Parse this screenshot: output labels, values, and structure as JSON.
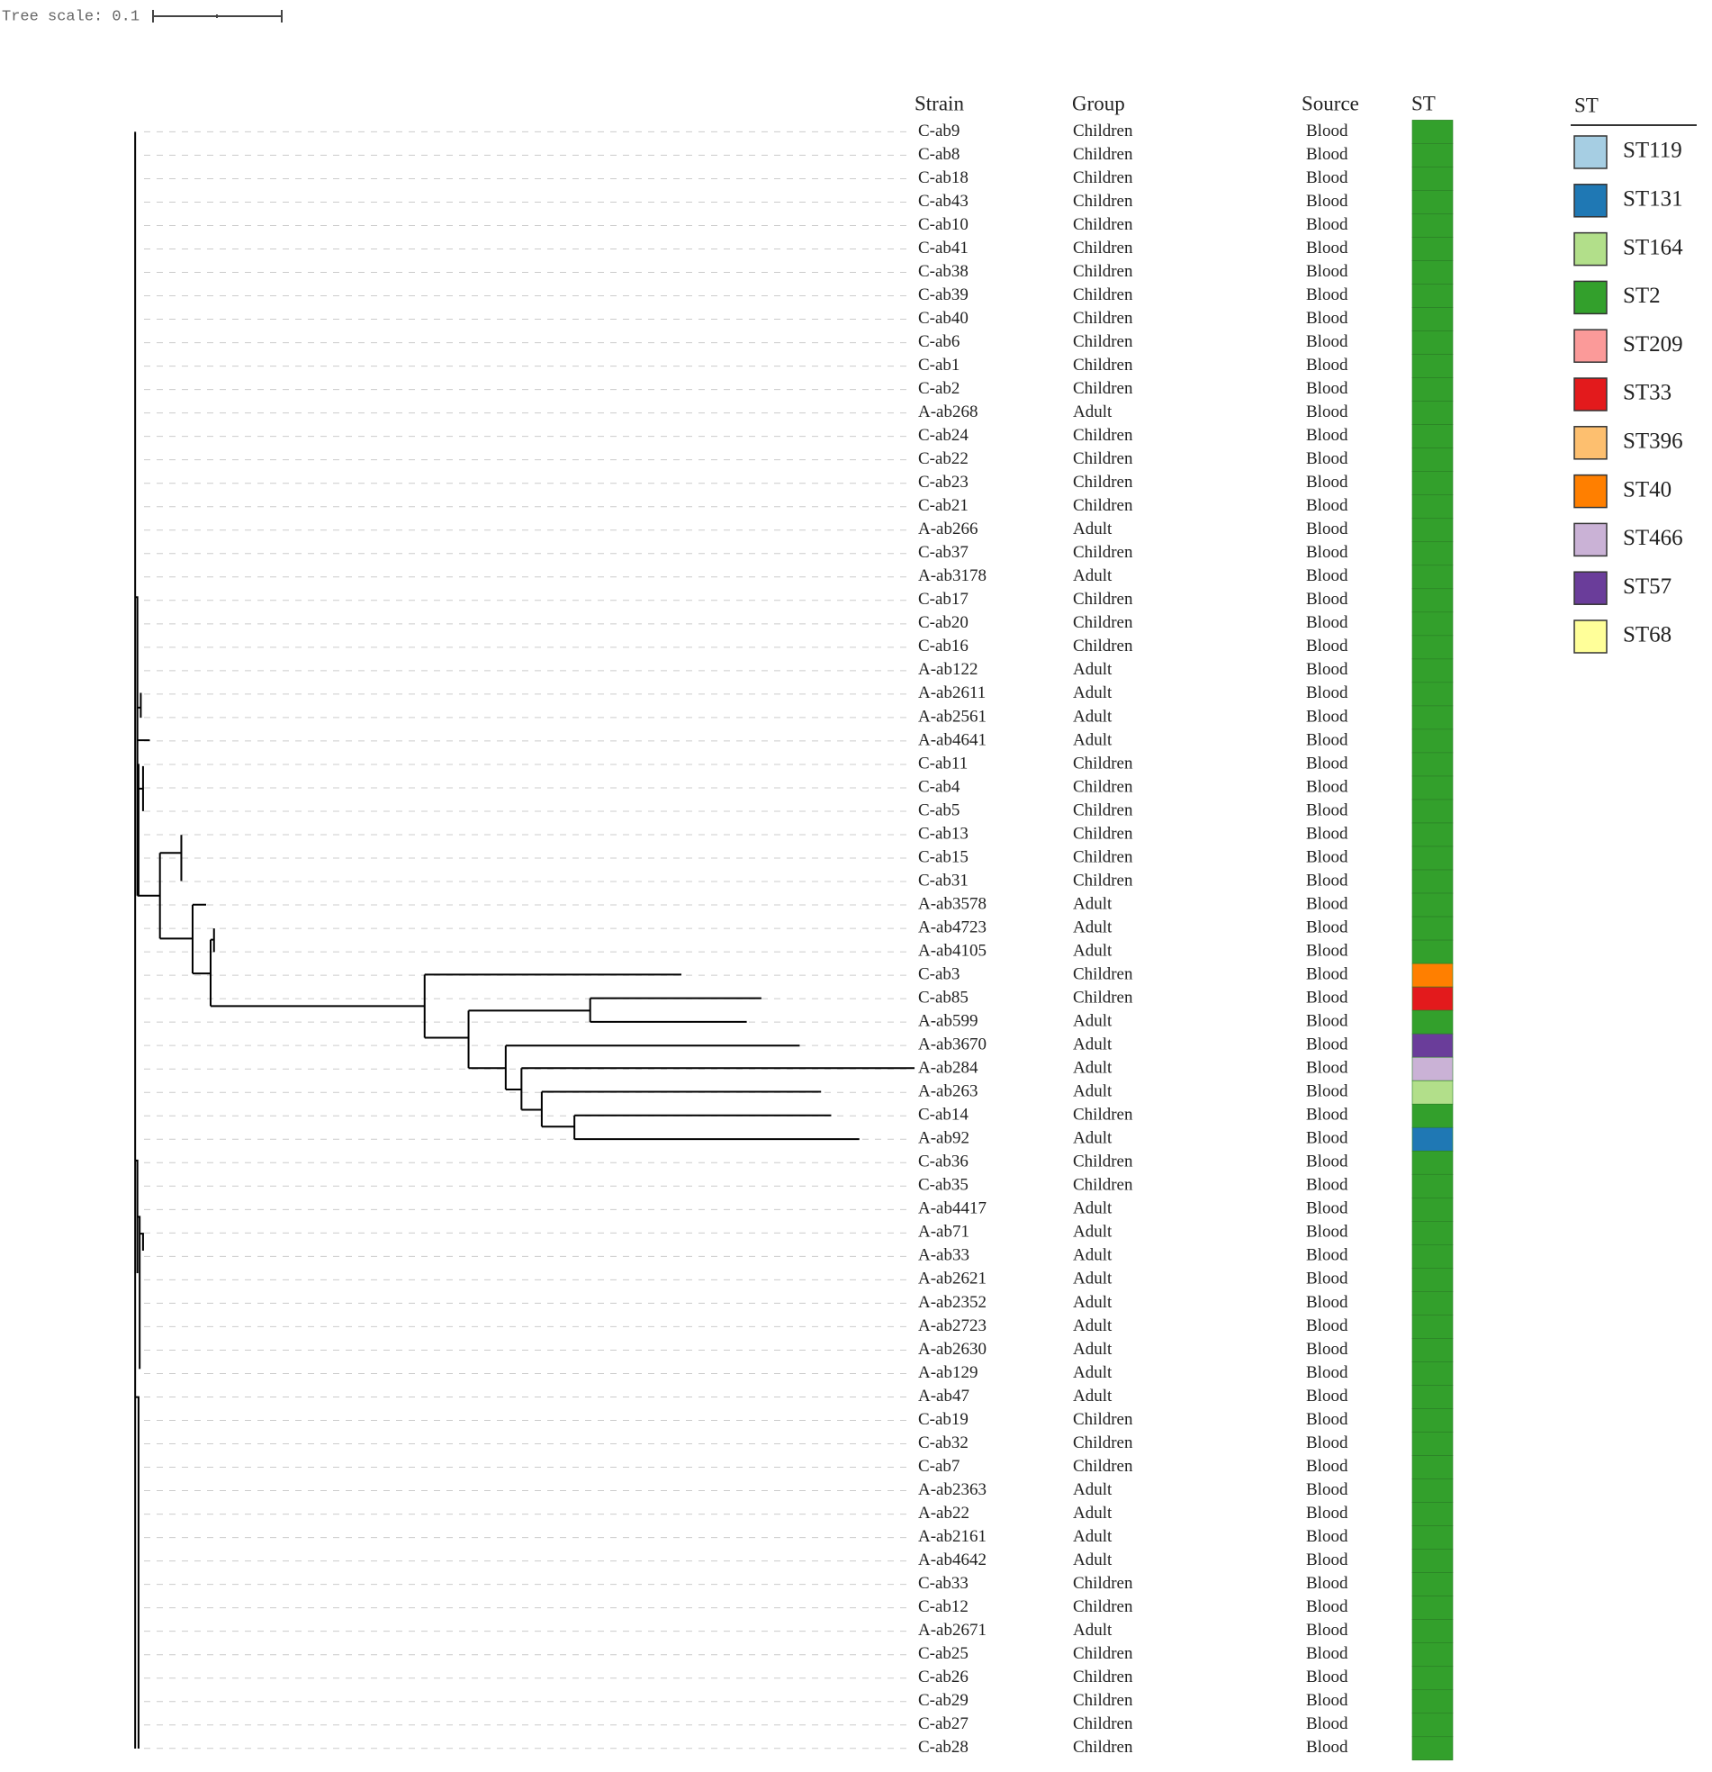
{
  "tree_scale": "Tree scale: 0.1",
  "columns": [
    "Strain",
    "Group",
    "Source",
    "ST"
  ],
  "legend": {
    "title": "ST",
    "items": [
      {
        "label": "ST119",
        "color": "#a6cee3"
      },
      {
        "label": "ST131",
        "color": "#1f78b4"
      },
      {
        "label": "ST164",
        "color": "#b2df8a"
      },
      {
        "label": "ST2",
        "color": "#33a02c"
      },
      {
        "label": "ST209",
        "color": "#fb9a99"
      },
      {
        "label": "ST33",
        "color": "#e31a1c"
      },
      {
        "label": "ST396",
        "color": "#fdbf6f"
      },
      {
        "label": "ST40",
        "color": "#ff7f00"
      },
      {
        "label": "ST466",
        "color": "#cab2d6"
      },
      {
        "label": "ST57",
        "color": "#6a3d9a"
      },
      {
        "label": "ST68",
        "color": "#ffff99"
      }
    ]
  },
  "table": {
    "rows": [
      [
        "C-ab9",
        "Children",
        "Blood",
        "ST2"
      ],
      [
        "C-ab8",
        "Children",
        "Blood",
        "ST2"
      ],
      [
        "C-ab18",
        "Children",
        "Blood",
        "ST2"
      ],
      [
        "C-ab43",
        "Children",
        "Blood",
        "ST2"
      ],
      [
        "C-ab10",
        "Children",
        "Blood",
        "ST2"
      ],
      [
        "C-ab41",
        "Children",
        "Blood",
        "ST2"
      ],
      [
        "C-ab38",
        "Children",
        "Blood",
        "ST2"
      ],
      [
        "C-ab39",
        "Children",
        "Blood",
        "ST2"
      ],
      [
        "C-ab40",
        "Children",
        "Blood",
        "ST2"
      ],
      [
        "C-ab6",
        "Children",
        "Blood",
        "ST2"
      ],
      [
        "C-ab1",
        "Children",
        "Blood",
        "ST2"
      ],
      [
        "C-ab2",
        "Children",
        "Blood",
        "ST2"
      ],
      [
        "A-ab268",
        "Adult",
        "Blood",
        "ST2"
      ],
      [
        "C-ab24",
        "Children",
        "Blood",
        "ST2"
      ],
      [
        "C-ab22",
        "Children",
        "Blood",
        "ST2"
      ],
      [
        "C-ab23",
        "Children",
        "Blood",
        "ST2"
      ],
      [
        "C-ab21",
        "Children",
        "Blood",
        "ST2"
      ],
      [
        "A-ab266",
        "Adult",
        "Blood",
        "ST2"
      ],
      [
        "C-ab37",
        "Children",
        "Blood",
        "ST2"
      ],
      [
        "A-ab3178",
        "Adult",
        "Blood",
        "ST2"
      ],
      [
        "C-ab17",
        "Children",
        "Blood",
        "ST2"
      ],
      [
        "C-ab20",
        "Children",
        "Blood",
        "ST2"
      ],
      [
        "C-ab16",
        "Children",
        "Blood",
        "ST2"
      ],
      [
        "A-ab122",
        "Adult",
        "Blood",
        "ST2"
      ],
      [
        "A-ab2611",
        "Adult",
        "Blood",
        "ST2"
      ],
      [
        "A-ab2561",
        "Adult",
        "Blood",
        "ST2"
      ],
      [
        "A-ab4641",
        "Adult",
        "Blood",
        "ST2"
      ],
      [
        "C-ab11",
        "Children",
        "Blood",
        "ST2"
      ],
      [
        "C-ab4",
        "Children",
        "Blood",
        "ST2"
      ],
      [
        "C-ab5",
        "Children",
        "Blood",
        "ST2"
      ],
      [
        "C-ab13",
        "Children",
        "Blood",
        "ST2"
      ],
      [
        "C-ab15",
        "Children",
        "Blood",
        "ST2"
      ],
      [
        "C-ab31",
        "Children",
        "Blood",
        "ST2"
      ],
      [
        "A-ab3578",
        "Adult",
        "Blood",
        "ST2"
      ],
      [
        "A-ab4723",
        "Adult",
        "Blood",
        "ST2"
      ],
      [
        "A-ab4105",
        "Adult",
        "Blood",
        "ST2"
      ],
      [
        "C-ab3",
        "Children",
        "Blood",
        "ST40"
      ],
      [
        "C-ab85",
        "Children",
        "Blood",
        "ST33"
      ],
      [
        "A-ab599",
        "Adult",
        "Blood",
        "ST2"
      ],
      [
        "A-ab3670",
        "Adult",
        "Blood",
        "ST57"
      ],
      [
        "A-ab284",
        "Adult",
        "Blood",
        "ST466"
      ],
      [
        "A-ab263",
        "Adult",
        "Blood",
        "ST164"
      ],
      [
        "C-ab14",
        "Children",
        "Blood",
        "ST2"
      ],
      [
        "A-ab92",
        "Adult",
        "Blood",
        "ST131"
      ],
      [
        "C-ab36",
        "Children",
        "Blood",
        "ST2"
      ],
      [
        "C-ab35",
        "Children",
        "Blood",
        "ST2"
      ],
      [
        "A-ab4417",
        "Adult",
        "Blood",
        "ST2"
      ],
      [
        "A-ab71",
        "Adult",
        "Blood",
        "ST2"
      ],
      [
        "A-ab33",
        "Adult",
        "Blood",
        "ST2"
      ],
      [
        "A-ab2621",
        "Adult",
        "Blood",
        "ST2"
      ],
      [
        "A-ab2352",
        "Adult",
        "Blood",
        "ST2"
      ],
      [
        "A-ab2723",
        "Adult",
        "Blood",
        "ST2"
      ],
      [
        "A-ab2630",
        "Adult",
        "Blood",
        "ST2"
      ],
      [
        "A-ab129",
        "Adult",
        "Blood",
        "ST2"
      ],
      [
        "A-ab47",
        "Adult",
        "Blood",
        "ST2"
      ],
      [
        "C-ab19",
        "Children",
        "Blood",
        "ST2"
      ],
      [
        "C-ab32",
        "Children",
        "Blood",
        "ST2"
      ],
      [
        "C-ab7",
        "Children",
        "Blood",
        "ST2"
      ],
      [
        "A-ab2363",
        "Adult",
        "Blood",
        "ST2"
      ],
      [
        "A-ab22",
        "Adult",
        "Blood",
        "ST2"
      ],
      [
        "A-ab2161",
        "Adult",
        "Blood",
        "ST2"
      ],
      [
        "A-ab4642",
        "Adult",
        "Blood",
        "ST2"
      ],
      [
        "C-ab33",
        "Children",
        "Blood",
        "ST2"
      ],
      [
        "C-ab12",
        "Children",
        "Blood",
        "ST2"
      ],
      [
        "A-ab2671",
        "Adult",
        "Blood",
        "ST2"
      ],
      [
        "C-ab25",
        "Children",
        "Blood",
        "ST2"
      ],
      [
        "C-ab26",
        "Children",
        "Blood",
        "ST2"
      ],
      [
        "C-ab29",
        "Children",
        "Blood",
        "ST2"
      ],
      [
        "C-ab27",
        "Children",
        "Blood",
        "ST2"
      ],
      [
        "C-ab28",
        "Children",
        "Blood",
        "ST2"
      ]
    ]
  }
}
